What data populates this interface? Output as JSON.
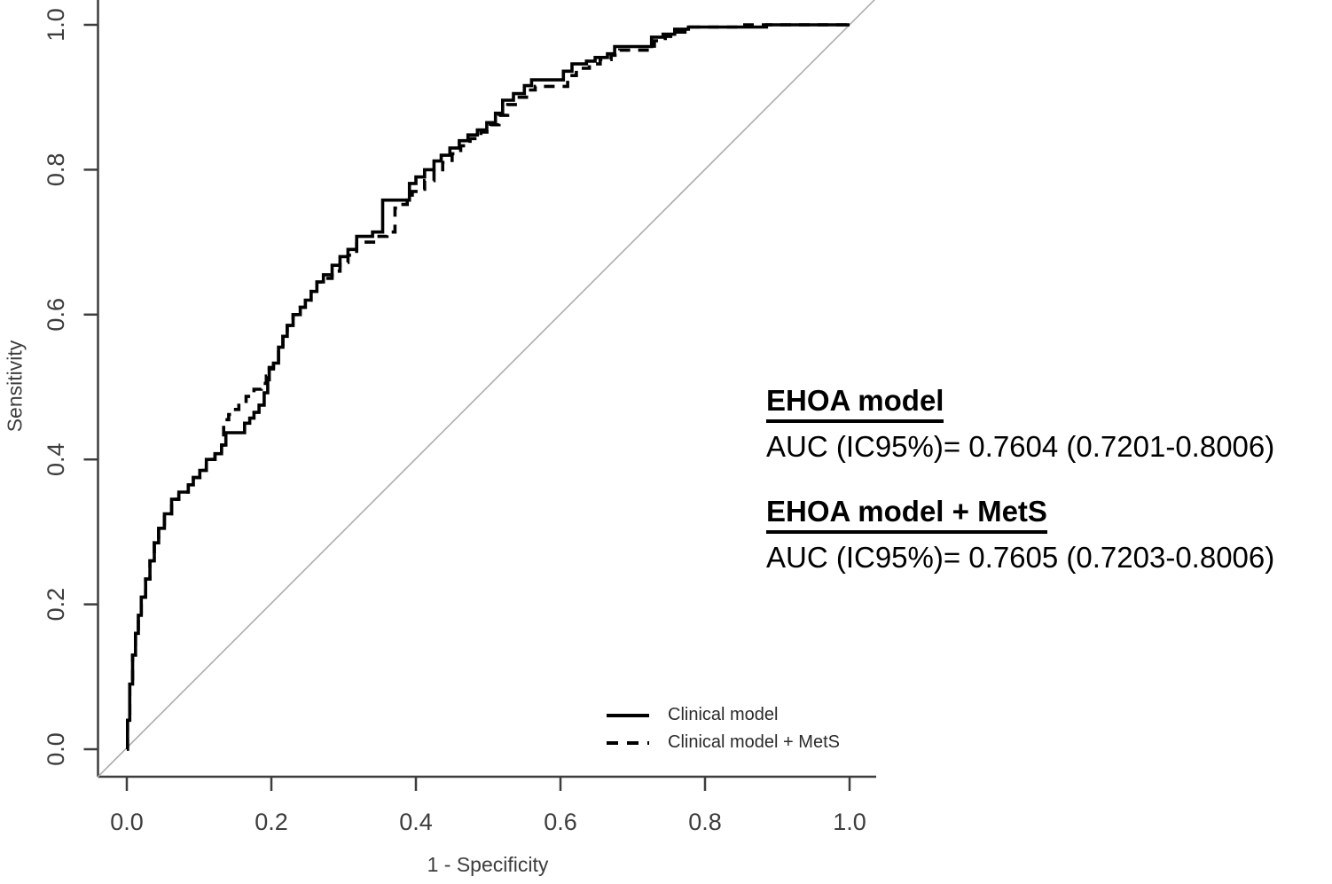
{
  "figure": {
    "background": "#ffffff",
    "curve_color": "#000000",
    "axis_color": "#3d3d3d",
    "diagonal_color": "#adadad"
  },
  "chart_data": {
    "type": "line",
    "title": "",
    "xlabel": "1 - Specificity",
    "ylabel": "Sensitivity",
    "xlim": [
      0,
      1
    ],
    "ylim": [
      0,
      1
    ],
    "grid": false,
    "x_ticks": [
      "0.0",
      "0.2",
      "0.4",
      "0.6",
      "0.8",
      "1.0"
    ],
    "y_ticks": [
      "0.0",
      "0.2",
      "0.4",
      "0.6",
      "0.8",
      "1.0"
    ],
    "reference_line": {
      "name": "chance-diagonal",
      "from": [
        0,
        0
      ],
      "to": [
        1,
        1
      ]
    },
    "legend": {
      "position": "inside-bottom-right",
      "entries": [
        {
          "label": "Clinical model",
          "line": "solid"
        },
        {
          "label": "Clinical model + MetS",
          "line": "dashed"
        }
      ]
    },
    "series": [
      {
        "name": "Clinical model",
        "style": "solid",
        "auc": 0.7604,
        "points": [
          [
            0.0,
            0.0
          ],
          [
            0.001,
            0.04
          ],
          [
            0.004,
            0.09
          ],
          [
            0.008,
            0.13
          ],
          [
            0.012,
            0.16
          ],
          [
            0.016,
            0.185
          ],
          [
            0.02,
            0.21
          ],
          [
            0.026,
            0.235
          ],
          [
            0.032,
            0.26
          ],
          [
            0.038,
            0.285
          ],
          [
            0.044,
            0.305
          ],
          [
            0.052,
            0.325
          ],
          [
            0.062,
            0.345
          ],
          [
            0.072,
            0.355
          ],
          [
            0.085,
            0.365
          ],
          [
            0.092,
            0.375
          ],
          [
            0.101,
            0.385
          ],
          [
            0.11,
            0.4
          ],
          [
            0.122,
            0.408
          ],
          [
            0.131,
            0.42
          ],
          [
            0.137,
            0.437
          ],
          [
            0.159,
            0.437
          ],
          [
            0.163,
            0.45
          ],
          [
            0.17,
            0.457
          ],
          [
            0.176,
            0.465
          ],
          [
            0.183,
            0.475
          ],
          [
            0.19,
            0.492
          ],
          [
            0.195,
            0.51
          ],
          [
            0.197,
            0.525
          ],
          [
            0.203,
            0.533
          ],
          [
            0.21,
            0.555
          ],
          [
            0.216,
            0.57
          ],
          [
            0.222,
            0.585
          ],
          [
            0.23,
            0.6
          ],
          [
            0.24,
            0.61
          ],
          [
            0.247,
            0.62
          ],
          [
            0.255,
            0.632
          ],
          [
            0.263,
            0.645
          ],
          [
            0.272,
            0.655
          ],
          [
            0.284,
            0.668
          ],
          [
            0.295,
            0.68
          ],
          [
            0.306,
            0.69
          ],
          [
            0.318,
            0.708
          ],
          [
            0.34,
            0.714
          ],
          [
            0.354,
            0.758
          ],
          [
            0.388,
            0.758
          ],
          [
            0.391,
            0.781
          ],
          [
            0.4,
            0.79
          ],
          [
            0.412,
            0.8
          ],
          [
            0.425,
            0.812
          ],
          [
            0.435,
            0.82
          ],
          [
            0.447,
            0.83
          ],
          [
            0.46,
            0.84
          ],
          [
            0.472,
            0.848
          ],
          [
            0.485,
            0.855
          ],
          [
            0.498,
            0.865
          ],
          [
            0.51,
            0.878
          ],
          [
            0.52,
            0.896
          ],
          [
            0.535,
            0.905
          ],
          [
            0.55,
            0.916
          ],
          [
            0.56,
            0.924
          ],
          [
            0.595,
            0.924
          ],
          [
            0.604,
            0.936
          ],
          [
            0.616,
            0.946
          ],
          [
            0.636,
            0.95
          ],
          [
            0.648,
            0.955
          ],
          [
            0.665,
            0.96
          ],
          [
            0.675,
            0.97
          ],
          [
            0.72,
            0.97
          ],
          [
            0.726,
            0.983
          ],
          [
            0.742,
            0.987
          ],
          [
            0.758,
            0.994
          ],
          [
            0.777,
            0.997
          ],
          [
            0.885,
            0.997
          ],
          [
            0.885,
            1.0
          ],
          [
            1.0,
            1.0
          ]
        ]
      },
      {
        "name": "Clinical model + MetS",
        "style": "dashed",
        "auc": 0.7605,
        "points": [
          [
            0.0,
            0.0
          ],
          [
            0.001,
            0.04
          ],
          [
            0.004,
            0.09
          ],
          [
            0.008,
            0.13
          ],
          [
            0.012,
            0.16
          ],
          [
            0.016,
            0.185
          ],
          [
            0.02,
            0.21
          ],
          [
            0.026,
            0.235
          ],
          [
            0.032,
            0.26
          ],
          [
            0.038,
            0.285
          ],
          [
            0.044,
            0.305
          ],
          [
            0.052,
            0.325
          ],
          [
            0.062,
            0.345
          ],
          [
            0.072,
            0.355
          ],
          [
            0.085,
            0.365
          ],
          [
            0.092,
            0.375
          ],
          [
            0.101,
            0.385
          ],
          [
            0.11,
            0.4
          ],
          [
            0.122,
            0.408
          ],
          [
            0.131,
            0.42
          ],
          [
            0.134,
            0.455
          ],
          [
            0.141,
            0.462
          ],
          [
            0.147,
            0.469
          ],
          [
            0.155,
            0.478
          ],
          [
            0.165,
            0.487
          ],
          [
            0.176,
            0.497
          ],
          [
            0.186,
            0.505
          ],
          [
            0.193,
            0.515
          ],
          [
            0.197,
            0.527
          ],
          [
            0.203,
            0.533
          ],
          [
            0.21,
            0.555
          ],
          [
            0.216,
            0.57
          ],
          [
            0.222,
            0.585
          ],
          [
            0.23,
            0.6
          ],
          [
            0.24,
            0.61
          ],
          [
            0.247,
            0.62
          ],
          [
            0.255,
            0.632
          ],
          [
            0.263,
            0.645
          ],
          [
            0.272,
            0.65
          ],
          [
            0.284,
            0.66
          ],
          [
            0.295,
            0.672
          ],
          [
            0.306,
            0.682
          ],
          [
            0.318,
            0.7
          ],
          [
            0.345,
            0.708
          ],
          [
            0.36,
            0.714
          ],
          [
            0.371,
            0.747
          ],
          [
            0.376,
            0.752
          ],
          [
            0.388,
            0.758
          ],
          [
            0.395,
            0.77
          ],
          [
            0.406,
            0.773
          ],
          [
            0.412,
            0.785
          ],
          [
            0.425,
            0.8
          ],
          [
            0.437,
            0.81
          ],
          [
            0.45,
            0.822
          ],
          [
            0.462,
            0.833
          ],
          [
            0.475,
            0.843
          ],
          [
            0.49,
            0.852
          ],
          [
            0.503,
            0.862
          ],
          [
            0.515,
            0.875
          ],
          [
            0.527,
            0.89
          ],
          [
            0.54,
            0.9
          ],
          [
            0.553,
            0.91
          ],
          [
            0.565,
            0.915
          ],
          [
            0.6,
            0.915
          ],
          [
            0.61,
            0.93
          ],
          [
            0.622,
            0.94
          ],
          [
            0.64,
            0.946
          ],
          [
            0.655,
            0.952
          ],
          [
            0.67,
            0.958
          ],
          [
            0.682,
            0.965
          ],
          [
            0.72,
            0.965
          ],
          [
            0.73,
            0.978
          ],
          [
            0.745,
            0.984
          ],
          [
            0.76,
            0.99
          ],
          [
            0.78,
            0.997
          ],
          [
            0.855,
            0.997
          ],
          [
            0.855,
            1.0
          ],
          [
            1.0,
            1.0
          ]
        ]
      }
    ]
  },
  "annotations": [
    {
      "title": "EHOA model",
      "text": "AUC (IC95%)= 0.7604 (0.7201-0.8006)"
    },
    {
      "title": "EHOA model + MetS",
      "text": "AUC (IC95%)= 0.7605 (0.7203-0.8006)"
    }
  ]
}
